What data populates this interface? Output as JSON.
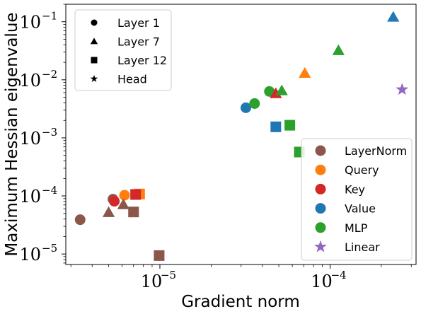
{
  "chart_data": {
    "type": "scatter",
    "xlabel": "Gradient norm",
    "ylabel": "Maximum Hessian eigenvalue",
    "xscale": "log",
    "yscale": "log",
    "xlim": [
      2.8e-06,
      0.00032
    ],
    "ylim": [
      6.6e-06,
      0.2
    ],
    "grid": false,
    "x_ticks": [
      {
        "value": 1e-05,
        "base": "10",
        "exp": "−5"
      },
      {
        "value": 0.0001,
        "base": "10",
        "exp": "−4"
      }
    ],
    "y_ticks": [
      {
        "value": 1e-05,
        "base": "10",
        "exp": "−5"
      },
      {
        "value": 0.0001,
        "base": "10",
        "exp": "−4"
      },
      {
        "value": 0.001,
        "base": "10",
        "exp": "−3"
      },
      {
        "value": 0.01,
        "base": "10",
        "exp": "−2"
      },
      {
        "value": 0.1,
        "base": "10",
        "exp": "−1"
      }
    ],
    "marker_legend": {
      "placement": "top-left",
      "entries": [
        {
          "label": "Layer 1",
          "marker": "circle"
        },
        {
          "label": "Layer 7",
          "marker": "triangle"
        },
        {
          "label": "Layer 12",
          "marker": "square"
        },
        {
          "label": "Head",
          "marker": "star"
        }
      ]
    },
    "color_legend": {
      "placement": "bottom-right",
      "entries": [
        {
          "label": "LayerNorm",
          "color": "#8c564b",
          "marker": "circle"
        },
        {
          "label": "Query",
          "color": "#ff7f0e",
          "marker": "circle"
        },
        {
          "label": "Key",
          "color": "#d62728",
          "marker": "circle"
        },
        {
          "label": "Value",
          "color": "#1f77b4",
          "marker": "circle"
        },
        {
          "label": "MLP",
          "color": "#2ca02c",
          "marker": "circle"
        },
        {
          "label": "Linear",
          "color": "#9467bd",
          "marker": "star"
        }
      ]
    },
    "points": [
      {
        "x": 3.4e-06,
        "y": 3.9e-05,
        "marker": "circle",
        "color": "#8c564b"
      },
      {
        "x": 5.3e-06,
        "y": 8.8e-05,
        "marker": "circle",
        "color": "#8c564b"
      },
      {
        "x": 5.4e-06,
        "y": 8.1e-05,
        "marker": "circle",
        "color": "#d62728"
      },
      {
        "x": 6.2e-06,
        "y": 0.000103,
        "marker": "circle",
        "color": "#ff7f0e"
      },
      {
        "x": 3.2e-05,
        "y": 0.0033,
        "marker": "circle",
        "color": "#1f77b4"
      },
      {
        "x": 3.6e-05,
        "y": 0.0039,
        "marker": "circle",
        "color": "#2ca02c"
      },
      {
        "x": 4.4e-05,
        "y": 0.0063,
        "marker": "circle",
        "color": "#2ca02c"
      },
      {
        "x": 5e-06,
        "y": 5.2e-05,
        "marker": "triangle",
        "color": "#8c564b"
      },
      {
        "x": 6.1e-06,
        "y": 7.1e-05,
        "marker": "triangle",
        "color": "#8c564b"
      },
      {
        "x": 4.8e-05,
        "y": 0.0058,
        "marker": "triangle",
        "color": "#d62728"
      },
      {
        "x": 5.2e-05,
        "y": 0.0065,
        "marker": "triangle",
        "color": "#2ca02c"
      },
      {
        "x": 7.1e-05,
        "y": 0.013,
        "marker": "triangle",
        "color": "#ff7f0e"
      },
      {
        "x": 0.000112,
        "y": 0.032,
        "marker": "triangle",
        "color": "#2ca02c"
      },
      {
        "x": 0.000235,
        "y": 0.12,
        "marker": "triangle",
        "color": "#1f77b4"
      },
      {
        "x": 7e-06,
        "y": 5.3e-05,
        "marker": "square",
        "color": "#8c564b"
      },
      {
        "x": 9.9e-06,
        "y": 9.4e-06,
        "marker": "square",
        "color": "#8c564b"
      },
      {
        "x": 7.6e-06,
        "y": 0.000108,
        "marker": "square",
        "color": "#ff7f0e"
      },
      {
        "x": 7.2e-06,
        "y": 0.000106,
        "marker": "square",
        "color": "#d62728"
      },
      {
        "x": 4.8e-05,
        "y": 0.00155,
        "marker": "square",
        "color": "#1f77b4"
      },
      {
        "x": 5.8e-05,
        "y": 0.00165,
        "marker": "square",
        "color": "#2ca02c"
      },
      {
        "x": 6.6e-05,
        "y": 0.00057,
        "marker": "square",
        "color": "#2ca02c"
      },
      {
        "x": 0.000265,
        "y": 0.0068,
        "marker": "star",
        "color": "#9467bd"
      }
    ]
  }
}
